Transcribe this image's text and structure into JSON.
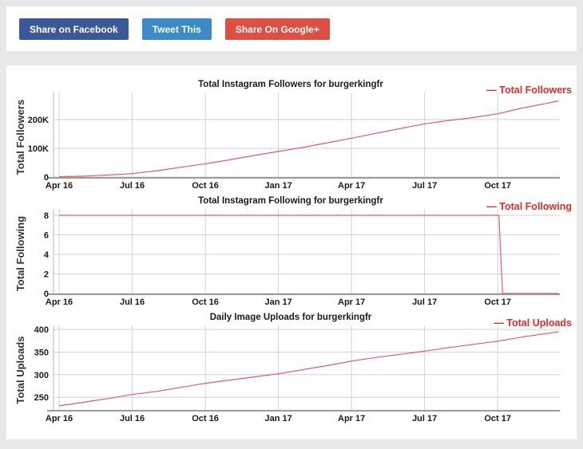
{
  "page": {
    "background_color": "#e7e8ea",
    "card_color": "#ffffff"
  },
  "share_buttons": [
    {
      "label": "Share on Facebook",
      "color": "#3b5998"
    },
    {
      "label": "Tweet This",
      "color": "#3a8bc8"
    },
    {
      "label": "Share On Google+",
      "color": "#dd4f43"
    }
  ],
  "chart_style": {
    "line_color": "#e25e5e",
    "legend_color": "#e02b2b",
    "grid_color": "#d2d2d2",
    "left_spine_color": "#b5b5b5",
    "bottom_spine_color": "#9b9b9b",
    "text_color": "#1a1a1a",
    "axis_label_color": "#333333"
  },
  "chart_data": [
    {
      "type": "line",
      "title": "Total Instagram Followers for burgerkingfr",
      "ylabel": "Total Followers",
      "legend": "Total Followers",
      "grid": true,
      "legend_position": "top-right",
      "xlim": [
        -0.23,
        20.55
      ],
      "ylim": [
        0,
        294000
      ],
      "yticks": [
        {
          "v": 0,
          "label": "0"
        },
        {
          "v": 100000,
          "label": "100K"
        },
        {
          "v": 200000,
          "label": "200K"
        }
      ],
      "xticks": [
        {
          "x": 0,
          "label": "Apr 16"
        },
        {
          "x": 3,
          "label": "Jul 16"
        },
        {
          "x": 6,
          "label": "Oct 16"
        },
        {
          "x": 9,
          "label": "Jan 17"
        },
        {
          "x": 12,
          "label": "Apr 17"
        },
        {
          "x": 15,
          "label": "Jul 17"
        },
        {
          "x": 18,
          "label": "Oct 17"
        }
      ],
      "points": [
        [
          0,
          1000
        ],
        [
          1,
          3000
        ],
        [
          2,
          7000
        ],
        [
          3,
          12000
        ],
        [
          4,
          22000
        ],
        [
          5,
          34000
        ],
        [
          6,
          46000
        ],
        [
          7,
          60000
        ],
        [
          8,
          75000
        ],
        [
          9,
          89000
        ],
        [
          10,
          103000
        ],
        [
          11,
          119000
        ],
        [
          12,
          135000
        ],
        [
          13,
          152000
        ],
        [
          14,
          169000
        ],
        [
          15,
          185000
        ],
        [
          16,
          197000
        ],
        [
          17,
          207000
        ],
        [
          18,
          220000
        ],
        [
          19,
          240000
        ],
        [
          20,
          256000
        ],
        [
          20.5,
          265000
        ]
      ]
    },
    {
      "type": "line",
      "title": "Total Instagram Following for burgerkingfr",
      "ylabel": "Total Following",
      "legend": "Total Following",
      "grid": true,
      "legend_position": "top-right",
      "xlim": [
        -0.23,
        20.55
      ],
      "ylim": [
        0,
        8.65
      ],
      "yticks": [
        {
          "v": 0,
          "label": "0"
        },
        {
          "v": 2,
          "label": "2"
        },
        {
          "v": 4,
          "label": "4"
        },
        {
          "v": 6,
          "label": "6"
        },
        {
          "v": 8,
          "label": "8"
        }
      ],
      "xticks": [
        {
          "x": 0,
          "label": "Apr 16"
        },
        {
          "x": 3,
          "label": "Jul 16"
        },
        {
          "x": 6,
          "label": "Oct 16"
        },
        {
          "x": 9,
          "label": "Jan 17"
        },
        {
          "x": 12,
          "label": "Apr 17"
        },
        {
          "x": 15,
          "label": "Jul 17"
        },
        {
          "x": 18,
          "label": "Oct 17"
        }
      ],
      "points": [
        [
          0,
          8
        ],
        [
          18.05,
          8
        ],
        [
          18.2,
          0
        ],
        [
          20.5,
          0
        ]
      ]
    },
    {
      "type": "line",
      "title": "Daily Image Uploads for burgerkingfr",
      "ylabel": "Total Uploads",
      "legend": "Total Uploads",
      "grid": true,
      "legend_position": "top-right",
      "xlim": [
        -0.23,
        20.55
      ],
      "ylim": [
        222,
        409
      ],
      "yticks": [
        {
          "v": 250,
          "label": "250"
        },
        {
          "v": 300,
          "label": "300"
        },
        {
          "v": 350,
          "label": "350"
        },
        {
          "v": 400,
          "label": "400"
        }
      ],
      "xticks": [
        {
          "x": 0,
          "label": "Apr 16"
        },
        {
          "x": 3,
          "label": "Jul 16"
        },
        {
          "x": 6,
          "label": "Oct 16"
        },
        {
          "x": 9,
          "label": "Jan 17"
        },
        {
          "x": 12,
          "label": "Apr 17"
        },
        {
          "x": 15,
          "label": "Jul 17"
        },
        {
          "x": 18,
          "label": "Oct 17"
        }
      ],
      "points": [
        [
          0,
          231
        ],
        [
          1,
          239
        ],
        [
          2,
          247
        ],
        [
          3,
          256
        ],
        [
          4,
          263
        ],
        [
          5,
          272
        ],
        [
          6,
          281
        ],
        [
          7,
          288
        ],
        [
          8,
          295
        ],
        [
          9,
          302
        ],
        [
          10,
          311
        ],
        [
          11,
          320
        ],
        [
          12,
          330
        ],
        [
          13,
          338
        ],
        [
          14,
          345
        ],
        [
          15,
          352
        ],
        [
          16,
          360
        ],
        [
          17,
          367
        ],
        [
          18,
          374
        ],
        [
          19,
          383
        ],
        [
          20,
          391
        ],
        [
          20.5,
          395
        ]
      ]
    }
  ]
}
